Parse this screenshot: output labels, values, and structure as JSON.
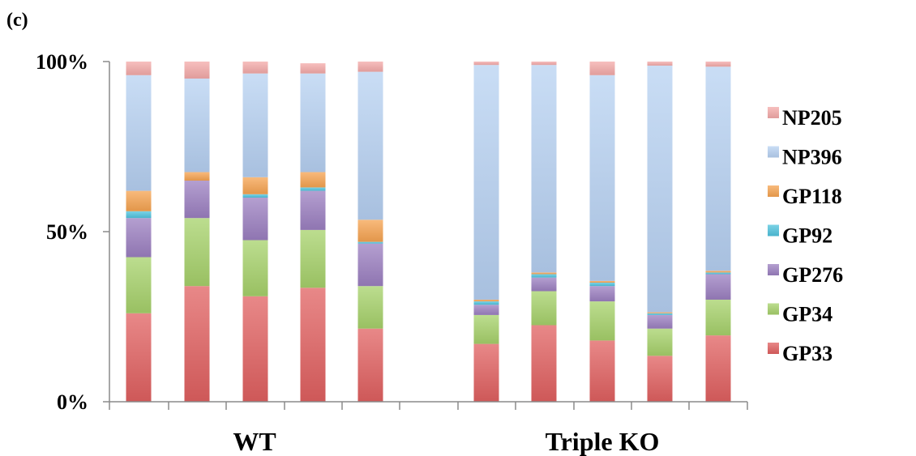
{
  "panel_label": "(c)",
  "chart_data": {
    "type": "bar",
    "stacked": "percent",
    "ylim": [
      0,
      100
    ],
    "yticks": [
      "0%",
      "50%",
      "100%"
    ],
    "groups": [
      {
        "label": "WT",
        "bar_count": 5
      },
      {
        "label": "Triple KO",
        "bar_count": 5
      }
    ],
    "legend_position": "right",
    "series": [
      {
        "name": "GP33",
        "color": "#e06060",
        "values": [
          26,
          34,
          31,
          33.5,
          21.5,
          17,
          22.5,
          18,
          13.5,
          19.5
        ]
      },
      {
        "name": "GP34",
        "color": "#a6d16a",
        "values": [
          16.5,
          20,
          16.5,
          17,
          12.5,
          8.5,
          10,
          11.5,
          8,
          10.5
        ]
      },
      {
        "name": "GP276",
        "color": "#9b7fc0",
        "values": [
          11.5,
          11,
          12.5,
          11.5,
          12.5,
          3,
          4,
          4.5,
          4,
          7.5
        ]
      },
      {
        "name": "GP92",
        "color": "#4fc3de",
        "values": [
          2,
          0,
          1,
          1,
          0.5,
          1,
          1,
          1,
          0.5,
          0.5
        ]
      },
      {
        "name": "GP118",
        "color": "#f6a350",
        "values": [
          6,
          2.5,
          5,
          4.5,
          6.5,
          0.5,
          0.5,
          0.5,
          0.3,
          0.5
        ]
      },
      {
        "name": "NP396",
        "color": "#b7d1f2",
        "values": [
          34,
          27.5,
          30.5,
          29,
          43.5,
          69,
          61,
          60.5,
          72.5,
          60
        ]
      },
      {
        "name": "NP205",
        "color": "#f4aaa8",
        "values": [
          4,
          5,
          3.5,
          3,
          3,
          1,
          1,
          4,
          1.2,
          1.5
        ]
      }
    ]
  }
}
